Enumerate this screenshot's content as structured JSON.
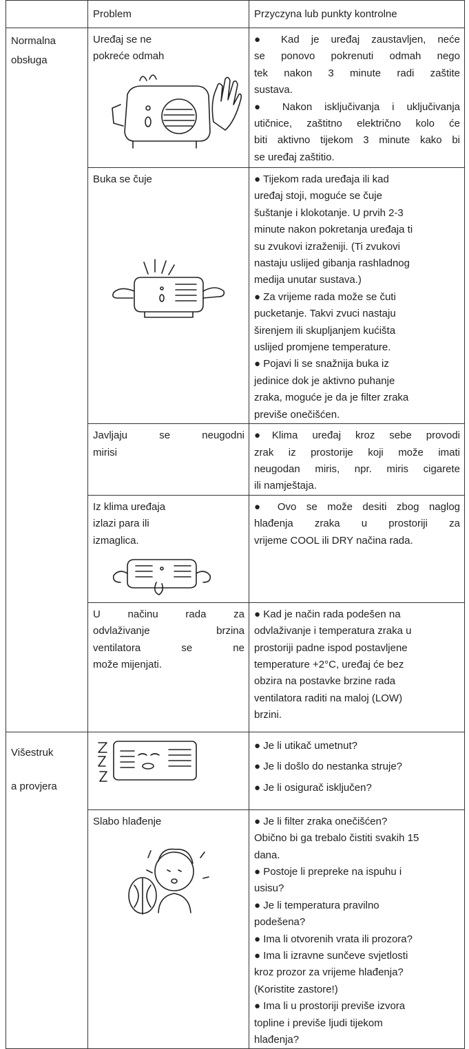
{
  "header": {
    "problem": "Problem",
    "cause": "Przyczyna lub punkty kontrolne"
  },
  "groups": [
    {
      "label": [
        "Normalna",
        "obsługa"
      ],
      "rows": [
        {
          "problem": [
            "Uređaj se ne",
            "pokreće odmah"
          ],
          "cause": [
            "● Kad je uređaj zaustavljen, neće",
            "se ponovo pokrenuti odmah nego",
            "tek nakon 3 minute radi zaštite",
            "sustava.",
            "● Nakon isključivanja i uključivanja",
            "utičnice, zaštitno električno kolo će",
            "biti aktivno tijekom 3 minute kako bi",
            "se uređaj zaštitio."
          ]
        },
        {
          "problem": [
            "Buka se čuje"
          ],
          "cause": [
            "● Tijekom rada uređaja ili kad",
            "uređaj stoji, moguće se čuje",
            "šuštanje i klokotanje. U prvih 2-3",
            "minute nakon pokretanja uređaja ti",
            "su zvukovi izraženiji. (Ti zvukovi",
            "nastaju uslijed gibanja rashladnog",
            "medija unutar sustava.)",
            "● Za vrijeme rada može se čuti",
            "pucketanje. Takvi zvuci nastaju",
            "širenjem ili skupljanjem kućišta",
            "uslijed promjene temperature.",
            "● Pojavi li se snažnija buka iz",
            "jedinice dok je aktivno puhanje",
            "zraka, moguće je da je filter zraka",
            "previše onečišćen."
          ]
        },
        {
          "problem": [
            "Javljaju se neugodni",
            "mirisi"
          ],
          "cause": [
            "●Klima uređaj kroz sebe provodi",
            "zrak iz prostorije koji može imati",
            "neugodan miris, npr. miris cigarete",
            "ili namještaja."
          ]
        },
        {
          "problem": [
            "Iz klima uređaja",
            "izlazi para ili",
            "izmaglica."
          ],
          "cause": [
            "● Ovo se može desiti zbog naglog",
            "hlađenja zraka u prostoriji za",
            "vrijeme COOL ili DRY načina rada."
          ]
        },
        {
          "problem": [
            "U načinu rada za",
            "odvlaživanje brzina",
            "ventilatora se ne",
            "može mijenjati."
          ],
          "cause": [
            "● Kad je način rada podešen na",
            "odvlaživanje i temperatura zraka u",
            "prostoriji padne ispod postavljene",
            "temperature +2°C, uređaj će bez",
            "obzira na postavke brzine rada",
            "ventilatora raditi na maloj (LOW)",
            "brzini."
          ]
        }
      ]
    },
    {
      "label": [
        "Višestruk",
        "a provjera"
      ],
      "rows": [
        {
          "cause": [
            "● Je li utikač umetnut?",
            "● Je li došlo do nestanka struje?",
            "● Je li osigurač isključen?"
          ]
        },
        {
          "problem": [
            "Slabo hlađenje"
          ],
          "cause": [
            "● Je li filter zraka onečišćen?",
            "Obično bi ga trebalo čistiti svakih 15",
            "dana.",
            "● Postoje li prepreke na ispuhu i",
            "usisu?",
            "● Je li temperatura pravilno",
            "podešena?",
            "● Ima li otvorenih vrata ili prozora?",
            "● Ima li izravne sunčeve svjetlosti",
            "kroz prozor za vrijeme hlađenja?",
            "(Koristite zastore!)",
            "● Ima li u prostoriji previše izvora",
            "topline i previše ljudi tijekom",
            "hlađenja?"
          ]
        }
      ]
    }
  ]
}
